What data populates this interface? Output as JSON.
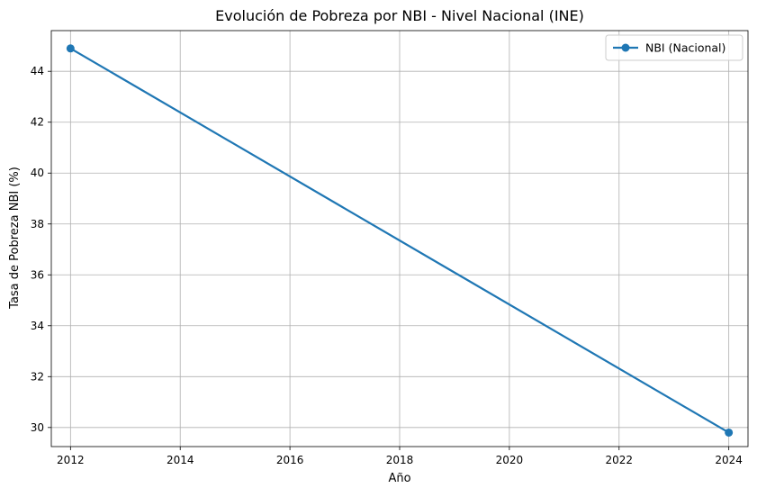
{
  "chart_data": {
    "type": "line",
    "title": "Evolución de Pobreza por NBI - Nivel Nacional (INE)",
    "xlabel": "Año",
    "ylabel": "Tasa de Pobreza NBI (%)",
    "xlim": [
      2011.65,
      2024.35
    ],
    "ylim": [
      29.25,
      45.6
    ],
    "xticks": [
      2012,
      2014,
      2016,
      2018,
      2020,
      2022,
      2024
    ],
    "yticks": [
      30,
      32,
      34,
      36,
      38,
      40,
      42,
      44
    ],
    "grid": true,
    "legend_position": "top-right",
    "series": [
      {
        "name": "NBI (Nacional)",
        "color": "#1f77b4",
        "marker": "circle",
        "x": [
          2012,
          2024
        ],
        "y": [
          44.9,
          29.8
        ]
      }
    ]
  }
}
